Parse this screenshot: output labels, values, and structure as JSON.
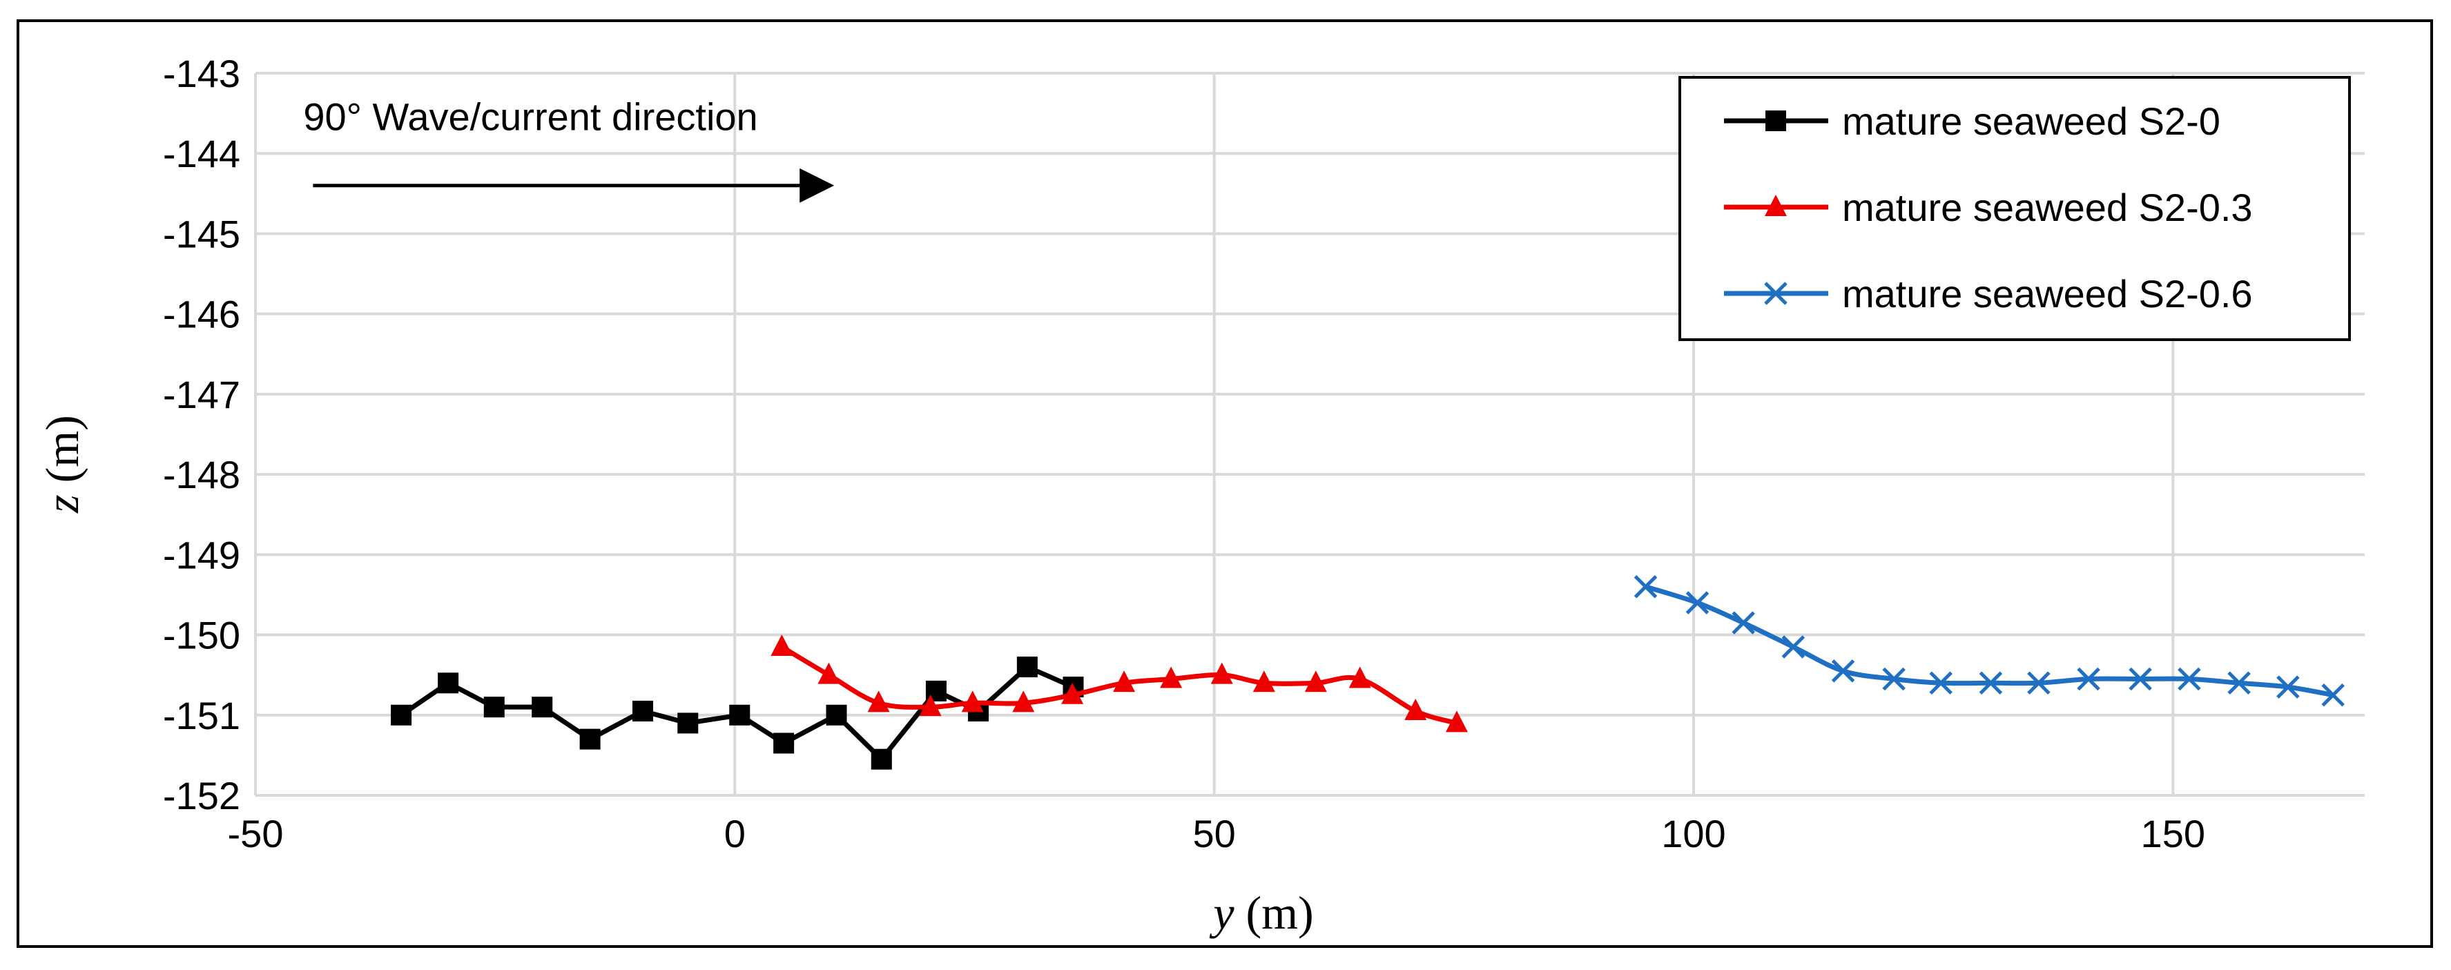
{
  "chart_data": {
    "type": "line",
    "title": "",
    "xlabel_var": "y",
    "xlabel_unit": "(m)",
    "ylabel_var": "z",
    "ylabel_unit": "(m)",
    "xlim": [
      -50,
      170
    ],
    "ylim": [
      -152,
      -143
    ],
    "xticks": [
      -50,
      0,
      50,
      100,
      150
    ],
    "yticks": [
      -143,
      -144,
      -145,
      -146,
      -147,
      -148,
      -149,
      -150,
      -151,
      -152
    ],
    "xtick_labels": [
      "-50",
      "0",
      "50",
      "100",
      "150"
    ],
    "ytick_labels": [
      "-143",
      "-144",
      "-145",
      "-146",
      "-147",
      "-148",
      "-149",
      "-150",
      "-151",
      "-152"
    ],
    "grid": true,
    "legend_position": "top-right",
    "annotation": {
      "text": "90° Wave/current direction",
      "arrow_from": [
        -44,
        -144.4
      ],
      "arrow_to": [
        10,
        -144.4
      ]
    },
    "series": [
      {
        "name": "mature seaweed S2-0",
        "color": "#000000",
        "marker": "square",
        "smooth": false,
        "points": [
          [
            -34.8,
            -151.0
          ],
          [
            -29.9,
            -150.6
          ],
          [
            -25.1,
            -150.9
          ],
          [
            -20.1,
            -150.9
          ],
          [
            -15.1,
            -151.3
          ],
          [
            -9.6,
            -150.95
          ],
          [
            -4.9,
            -151.1
          ],
          [
            0.5,
            -151.0
          ],
          [
            5.1,
            -151.35
          ],
          [
            10.6,
            -151.0
          ],
          [
            15.3,
            -151.55
          ],
          [
            21.0,
            -150.7
          ],
          [
            25.4,
            -150.95
          ],
          [
            30.5,
            -150.4
          ],
          [
            35.3,
            -150.65
          ]
        ]
      },
      {
        "name": "mature seaweed S2-0.3",
        "color": "#ee0000",
        "marker": "triangle",
        "smooth": true,
        "points": [
          [
            4.9,
            -150.15
          ],
          [
            9.8,
            -150.5
          ],
          [
            15.0,
            -150.85
          ],
          [
            20.4,
            -150.9
          ],
          [
            24.8,
            -150.85
          ],
          [
            30.1,
            -150.85
          ],
          [
            35.2,
            -150.75
          ],
          [
            40.6,
            -150.6
          ],
          [
            45.5,
            -150.55
          ],
          [
            50.8,
            -150.5
          ],
          [
            55.2,
            -150.6
          ],
          [
            60.6,
            -150.6
          ],
          [
            65.2,
            -150.55
          ],
          [
            71.0,
            -150.95
          ],
          [
            75.3,
            -151.1
          ]
        ]
      },
      {
        "name": "mature seaweed S2-0.6",
        "color": "#1f6fc2",
        "marker": "x",
        "smooth": true,
        "points": [
          [
            95.0,
            -149.4
          ],
          [
            100.4,
            -149.6
          ],
          [
            105.2,
            -149.85
          ],
          [
            110.4,
            -150.15
          ],
          [
            115.6,
            -150.45
          ],
          [
            120.9,
            -150.55
          ],
          [
            125.8,
            -150.6
          ],
          [
            131.0,
            -150.6
          ],
          [
            136.0,
            -150.6
          ],
          [
            141.2,
            -150.55
          ],
          [
            146.6,
            -150.55
          ],
          [
            151.7,
            -150.55
          ],
          [
            156.9,
            -150.6
          ],
          [
            162.0,
            -150.65
          ],
          [
            166.7,
            -150.75
          ]
        ]
      }
    ]
  }
}
